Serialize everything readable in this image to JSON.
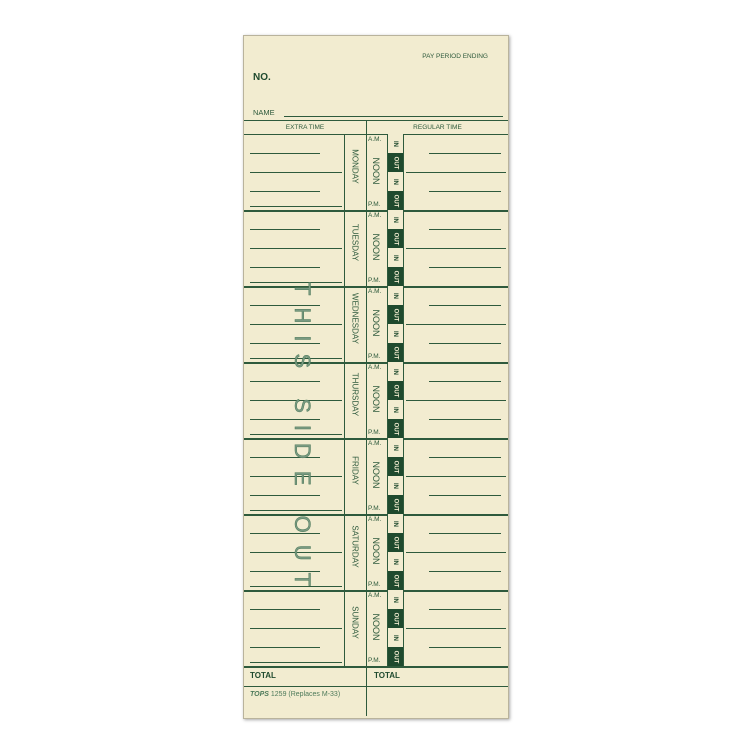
{
  "card": {
    "pay_period_label": "PAY PERIOD ENDING",
    "no_label": "NO.",
    "name_label": "NAME",
    "extra_time_header": "EXTRA TIME",
    "regular_time_header": "REGULAR TIME",
    "am_label": "A.M.",
    "noon_label": "NOON",
    "pm_label": "P.M.",
    "in_label": "IN",
    "out_label": "OUT",
    "watermark": "THIS SIDE OUT",
    "total_left": "TOTAL",
    "total_right": "TOTAL",
    "brand": "TOPS",
    "footer": "1259 (Replaces M-33)",
    "days": [
      "MONDAY",
      "TUESDAY",
      "WEDNESDAY",
      "THURSDAY",
      "FRIDAY",
      "SATURDAY",
      "SUNDAY"
    ],
    "colors": {
      "paper": "#f2ecd0",
      "ink": "#1f4a2e"
    }
  }
}
